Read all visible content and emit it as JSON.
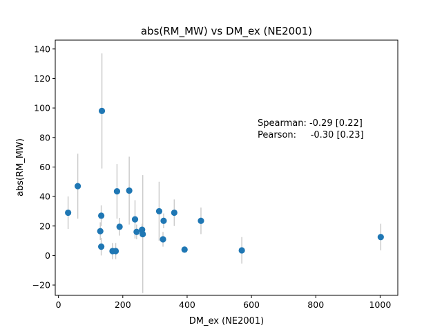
{
  "chart_data": {
    "type": "scatter",
    "title": "abs(RM_MW) vs DM_ex (NE2001)",
    "xlabel": "DM_ex (NE2001)",
    "ylabel": "abs(RM_MW)",
    "xlim": [
      -10,
      1055
    ],
    "ylim": [
      -27,
      146
    ],
    "xticks": [
      0,
      200,
      400,
      600,
      800,
      1000
    ],
    "yticks": [
      -20,
      0,
      20,
      40,
      60,
      80,
      100,
      120,
      140
    ],
    "grid": false,
    "colors": {
      "point": "#1f77b4",
      "errorbar": "#cccccc"
    },
    "points": [
      {
        "x": 30,
        "y": 29,
        "err": 11
      },
      {
        "x": 60,
        "y": 47,
        "err": 22
      },
      {
        "x": 130,
        "y": 16.5,
        "err": 6
      },
      {
        "x": 133,
        "y": 27,
        "err": 7
      },
      {
        "x": 133,
        "y": 6,
        "err": 6
      },
      {
        "x": 135,
        "y": 98,
        "err": 39
      },
      {
        "x": 168,
        "y": 3,
        "err": 5.5
      },
      {
        "x": 178,
        "y": 3,
        "err": 5.5
      },
      {
        "x": 182,
        "y": 43.5,
        "err": 18.5
      },
      {
        "x": 190,
        "y": 19.5,
        "err": 6
      },
      {
        "x": 220,
        "y": 44,
        "err": 23
      },
      {
        "x": 238,
        "y": 24.5,
        "err": 13
      },
      {
        "x": 243,
        "y": 16,
        "err": 5
      },
      {
        "x": 260,
        "y": 17.5,
        "err": 4
      },
      {
        "x": 262,
        "y": 14.5,
        "err": 40
      },
      {
        "x": 313,
        "y": 30,
        "err": 20
      },
      {
        "x": 325,
        "y": 11,
        "err": 5
      },
      {
        "x": 327,
        "y": 23.5,
        "err": 5
      },
      {
        "x": 360,
        "y": 29,
        "err": 9
      },
      {
        "x": 392,
        "y": 4,
        "err": 1
      },
      {
        "x": 443,
        "y": 23.5,
        "err": 9
      },
      {
        "x": 570,
        "y": 3.5,
        "err": 9
      },
      {
        "x": 1002,
        "y": 12.5,
        "err": 9
      }
    ],
    "annotation": {
      "line1": "Spearman: -0.29 [0.22]",
      "line2": "Pearson:     -0.30 [0.23]"
    }
  }
}
